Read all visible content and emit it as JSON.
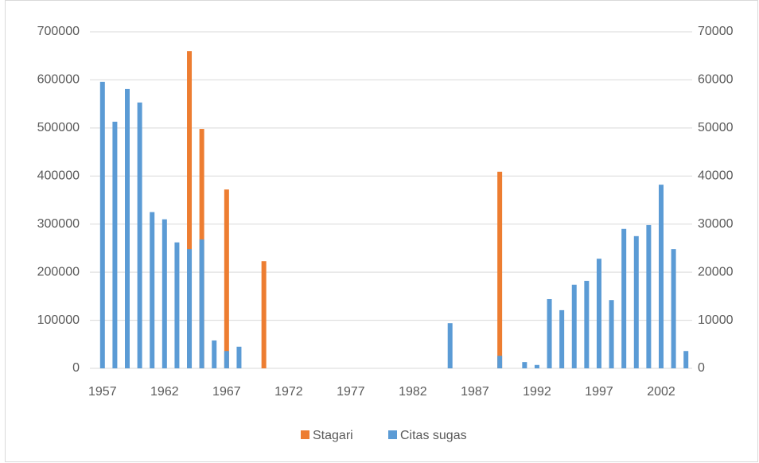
{
  "chart_data": {
    "type": "bar",
    "categories": [
      "1957",
      null,
      null,
      null,
      null,
      "1962",
      null,
      null,
      null,
      null,
      "1967",
      null,
      null,
      null,
      null,
      "1972",
      null,
      null,
      null,
      null,
      "1977",
      null,
      null,
      null,
      null,
      "1982",
      null,
      null,
      null,
      null,
      "1987",
      null,
      null,
      null,
      null,
      "1992",
      null,
      null,
      null,
      null,
      "1997",
      null,
      null,
      null,
      null,
      "2002",
      null,
      null
    ],
    "series": [
      {
        "name": "Stagari",
        "color": "#ed7d31",
        "values": [
          null,
          null,
          null,
          null,
          null,
          null,
          null,
          660000,
          498000,
          null,
          372000,
          null,
          null,
          223000,
          null,
          null,
          null,
          null,
          null,
          null,
          null,
          null,
          null,
          null,
          null,
          null,
          null,
          null,
          null,
          null,
          null,
          null,
          409000,
          null,
          null,
          null,
          null,
          null,
          null,
          null,
          null,
          null,
          null,
          null,
          null,
          null,
          null,
          null
        ]
      },
      {
        "name": "Citas sugas",
        "color": "#5b9bd5",
        "axis": "y2",
        "values": [
          59600,
          51300,
          58100,
          55300,
          32500,
          31000,
          26200,
          24800,
          26800,
          5800,
          3600,
          4500,
          null,
          null,
          null,
          null,
          null,
          null,
          null,
          null,
          null,
          null,
          null,
          null,
          null,
          null,
          null,
          null,
          9400,
          null,
          null,
          null,
          2600,
          null,
          1300,
          700,
          14400,
          12100,
          17400,
          18200,
          22800,
          14200,
          29000,
          27500,
          29800,
          38200,
          24800,
          3600
        ]
      }
    ],
    "ylim": [
      0,
      700000
    ],
    "yticks": [
      0,
      100000,
      200000,
      300000,
      400000,
      500000,
      600000,
      700000
    ],
    "y2lim": [
      0,
      70000
    ],
    "y2ticks": [
      0,
      10000,
      20000,
      30000,
      40000,
      50000,
      60000,
      70000
    ],
    "grid": true,
    "legend": "bottom"
  }
}
